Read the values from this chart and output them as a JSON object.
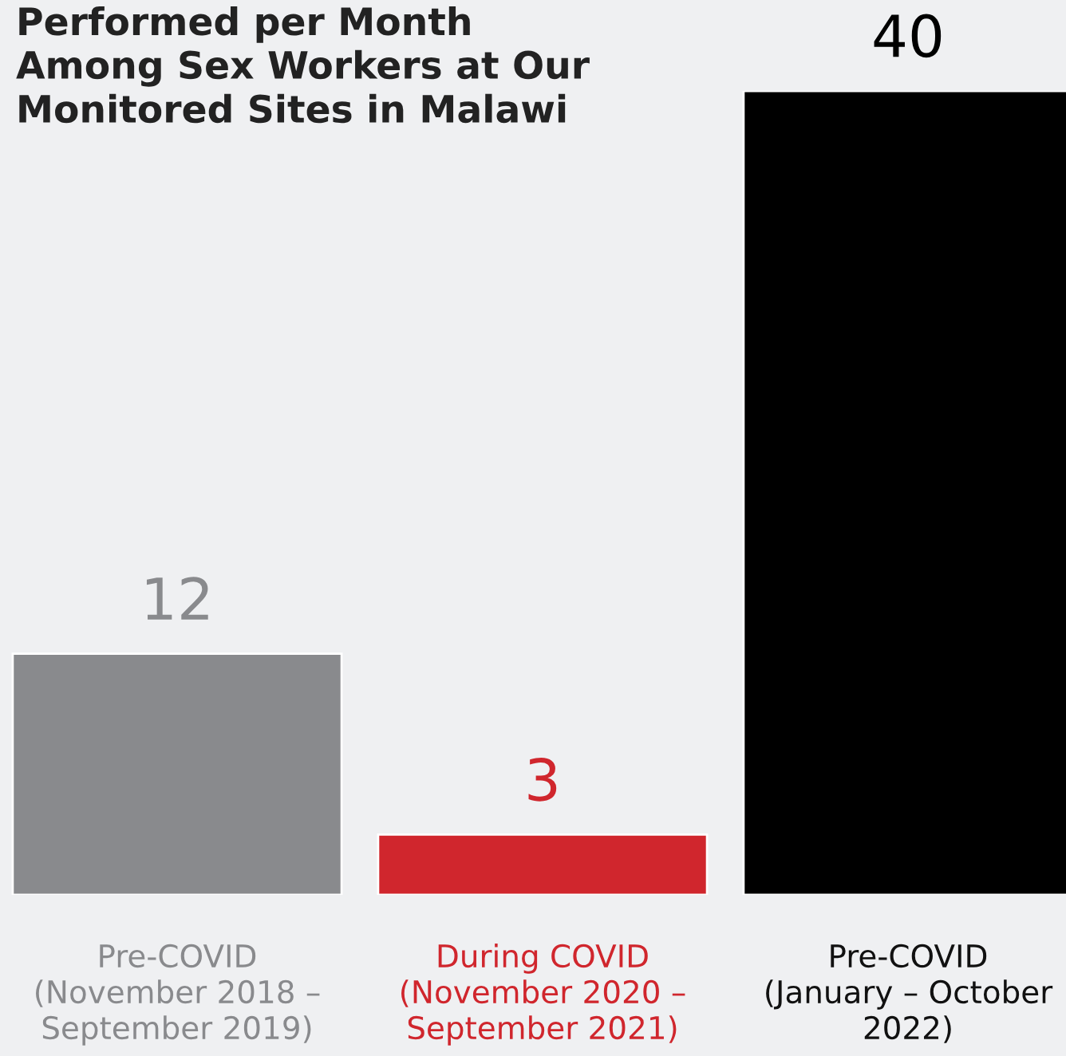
{
  "chart_data": {
    "type": "bar",
    "title": "Performed per Month\nAmong Sex Workers at Our\nMonitored Sites in Malawi",
    "categories": [
      "Pre-COVID\n(November 2018 –\nSeptember 2019)",
      "During COVID\n(November 2020 –\nSeptember 2021)",
      "Pre-COVID\n(January – October\n2022)"
    ],
    "values": [
      12,
      3,
      40
    ],
    "colors": [
      "#898a8d",
      "#d0262d",
      "#000000"
    ],
    "data_labels": true,
    "grid": false,
    "legend": false
  }
}
